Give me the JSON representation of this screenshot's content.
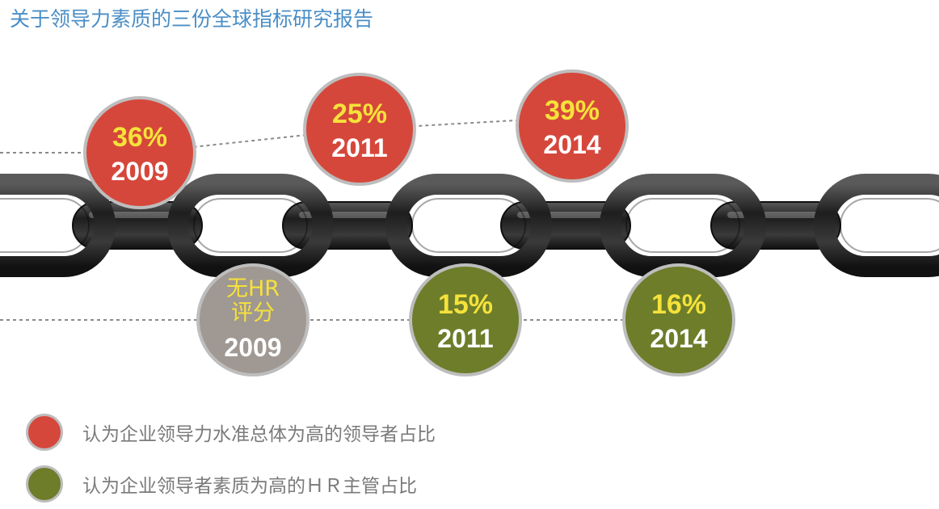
{
  "title": "关于领导力素质的三份全球指标研究报告",
  "colors": {
    "red": "#d6473b",
    "green": "#6d7d2a",
    "gray": "#a09892",
    "border": "#bdbdbd",
    "pct_text": "#f5e23a",
    "year_text": "#ffffff",
    "chain_dark": "#2b2b2b"
  },
  "chart_data": {
    "type": "timeline",
    "series": [
      {
        "key": "red",
        "name": "认为企业领导力水准总体为高的领导者占比",
        "points": [
          {
            "year": "2009",
            "value": 36,
            "label": "36%"
          },
          {
            "year": "2011",
            "value": 25,
            "label": "25%"
          },
          {
            "year": "2014",
            "value": 39,
            "label": "39%"
          }
        ]
      },
      {
        "key": "green",
        "name": "认为企业领导者素质为高的ＨＲ主管占比",
        "points": [
          {
            "year": "2009",
            "value": null,
            "label": "无HR评分",
            "label_lines": [
              "无HR",
              "评分"
            ]
          },
          {
            "year": "2011",
            "value": 15,
            "label": "15%"
          },
          {
            "year": "2014",
            "value": 16,
            "label": "16%"
          }
        ]
      }
    ],
    "legend": {
      "placement": "bottom-left",
      "items": [
        {
          "color": "red",
          "label": "认为企业领导力水准总体为高的领导者占比"
        },
        {
          "color": "green",
          "label": "认为企业领导者素质为高的ＨＲ主管占比"
        }
      ]
    }
  }
}
